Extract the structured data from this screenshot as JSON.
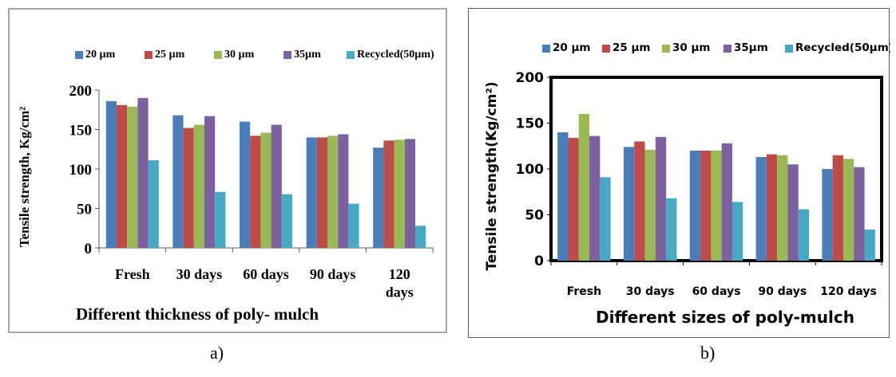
{
  "colors": {
    "s1": "#4a7ebb",
    "s2": "#be4b48",
    "s3": "#98b954",
    "s4": "#7d60a0",
    "s5": "#46aac5"
  },
  "chart_data": [
    {
      "type": "bar",
      "caption": "a)",
      "xlabel": "Different thickness of poly- mulch",
      "ylabel": "Tensile  strength, Kg/cm²",
      "ylim": [
        0,
        200
      ],
      "yticks": [
        "0",
        "50",
        "100",
        "150",
        "200"
      ],
      "grid": false,
      "legend": "top",
      "categories": [
        "Fresh",
        "30 days",
        "60 days",
        "90 days",
        "120 days"
      ],
      "series": [
        {
          "name": "20 µm",
          "values": [
            186,
            168,
            160,
            140,
            127
          ]
        },
        {
          "name": "25 µm",
          "values": [
            181,
            152,
            142,
            140,
            136
          ]
        },
        {
          "name": "30 µm",
          "values": [
            179,
            156,
            146,
            142,
            137
          ]
        },
        {
          "name": "35µm",
          "values": [
            190,
            167,
            156,
            144,
            138
          ]
        },
        {
          "name": "Recycled(50µm)",
          "values": [
            111,
            71,
            68,
            56,
            28
          ]
        }
      ]
    },
    {
      "type": "bar",
      "caption": "b)",
      "xlabel": "Different sizes of poly-mulch",
      "ylabel": "Tensile strength(Kg/cm²)",
      "ylim": [
        0,
        200
      ],
      "yticks": [
        "0",
        "50",
        "100",
        "150",
        "200"
      ],
      "grid": false,
      "legend": "top",
      "categories": [
        "Fresh",
        "30 days",
        "60 days",
        "90 days",
        "120 days"
      ],
      "series": [
        {
          "name": "20 µm",
          "values": [
            140,
            124,
            120,
            113,
            100
          ]
        },
        {
          "name": "25 µm",
          "values": [
            134,
            130,
            120,
            116,
            115
          ]
        },
        {
          "name": "30 µm",
          "values": [
            160,
            121,
            120,
            115,
            111
          ]
        },
        {
          "name": "35µm",
          "values": [
            136,
            135,
            128,
            105,
            102
          ]
        },
        {
          "name": "Recycled(50µm)",
          "values": [
            91,
            68,
            64,
            56,
            34
          ]
        }
      ]
    }
  ]
}
